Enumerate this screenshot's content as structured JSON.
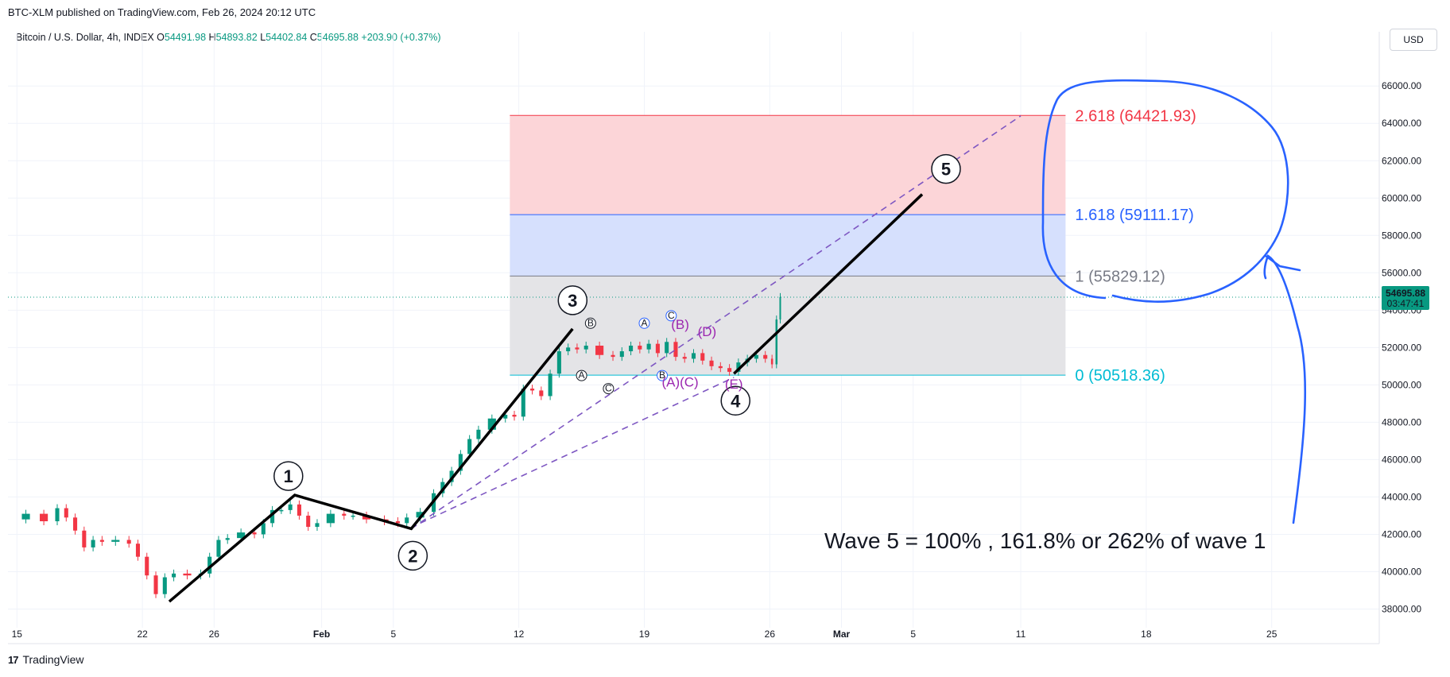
{
  "header": {
    "published": "BTC-XLM published on TradingView.com, Feb 26, 2024 20:12 UTC"
  },
  "symbol": {
    "name": "Bitcoin / U.S. Dollar, 4h, INDEX",
    "open_label": "O",
    "open": "54491.98",
    "high_label": "H",
    "high": "54893.82",
    "low_label": "L",
    "low": "54402.84",
    "close_label": "C",
    "close": "54695.88",
    "change": "+203.90 (+0.37%)"
  },
  "currency": "USD",
  "footer": {
    "brand": "TradingView"
  },
  "price_tag": {
    "price": "54695.88",
    "countdown": "03:47:41"
  },
  "chart_data": {
    "type": "line",
    "title": "",
    "xlabel": "",
    "ylabel": "",
    "ylim": [
      37000,
      67200
    ],
    "y_ticks": [
      38000,
      40000,
      42000,
      44000,
      46000,
      48000,
      50000,
      52000,
      54000,
      56000,
      58000,
      60000,
      62000,
      64000,
      66000
    ],
    "y_tick_labels": [
      "38000.00",
      "40000.00",
      "42000.00",
      "44000.00",
      "46000.00",
      "48000.00",
      "50000.00",
      "52000.00",
      "54000.00",
      "56000.00",
      "58000.00",
      "60000.00",
      "62000.00",
      "64000.00",
      "66000.00"
    ],
    "x_ticks": [
      {
        "date": "2024-01-15",
        "label": "15"
      },
      {
        "date": "2024-01-22",
        "label": "22"
      },
      {
        "date": "2024-01-26",
        "label": "26"
      },
      {
        "date": "2024-02-01",
        "label": "Feb"
      },
      {
        "date": "2024-02-05",
        "label": "5"
      },
      {
        "date": "2024-02-12",
        "label": "12"
      },
      {
        "date": "2024-02-19",
        "label": "19"
      },
      {
        "date": "2024-02-26",
        "label": "26"
      },
      {
        "date": "2024-03-01",
        "label": "Mar"
      },
      {
        "date": "2024-03-05",
        "label": "5"
      },
      {
        "date": "2024-03-11",
        "label": "11"
      },
      {
        "date": "2024-03-18",
        "label": "18"
      },
      {
        "date": "2024-03-25",
        "label": "25"
      }
    ],
    "price_series": [
      [
        "2024-01-15",
        42800
      ],
      [
        "2024-01-16",
        43100
      ],
      [
        "2024-01-17",
        42700
      ],
      [
        "2024-01-17T12",
        43400
      ],
      [
        "2024-01-18",
        42900
      ],
      [
        "2024-01-18T12",
        42200
      ],
      [
        "2024-01-19",
        41300
      ],
      [
        "2024-01-19T12",
        41700
      ],
      [
        "2024-01-20",
        41600
      ],
      [
        "2024-01-21",
        41700
      ],
      [
        "2024-01-21T12",
        41500
      ],
      [
        "2024-01-22",
        40800
      ],
      [
        "2024-01-22T12",
        39800
      ],
      [
        "2024-01-23",
        38800
      ],
      [
        "2024-01-23T12",
        39700
      ],
      [
        "2024-01-24",
        39900
      ],
      [
        "2024-01-25",
        39800
      ],
      [
        "2024-01-25T12",
        39900
      ],
      [
        "2024-01-26",
        40800
      ],
      [
        "2024-01-26T12",
        41700
      ],
      [
        "2024-01-27",
        41800
      ],
      [
        "2024-01-28",
        42100
      ],
      [
        "2024-01-28T12",
        42000
      ],
      [
        "2024-01-29",
        42600
      ],
      [
        "2024-01-29T12",
        43300
      ],
      [
        "2024-01-30",
        43300
      ],
      [
        "2024-01-30T12",
        43600
      ],
      [
        "2024-01-31",
        43000
      ],
      [
        "2024-01-31T12",
        42400
      ],
      [
        "2024-02-01",
        42600
      ],
      [
        "2024-02-02",
        43100
      ],
      [
        "2024-02-02T12",
        43000
      ],
      [
        "2024-02-03",
        43000
      ],
      [
        "2024-02-04",
        42800
      ],
      [
        "2024-02-05",
        42700
      ],
      [
        "2024-02-05T12",
        42600
      ],
      [
        "2024-02-06",
        42900
      ],
      [
        "2024-02-07",
        43200
      ],
      [
        "2024-02-07T12",
        44200
      ],
      [
        "2024-02-08",
        44800
      ],
      [
        "2024-02-08T12",
        45400
      ],
      [
        "2024-02-09",
        46300
      ],
      [
        "2024-02-09T12",
        47100
      ],
      [
        "2024-02-10",
        47600
      ],
      [
        "2024-02-11",
        48200
      ],
      [
        "2024-02-11T12",
        48400
      ],
      [
        "2024-02-12",
        48300
      ],
      [
        "2024-02-12T12",
        49800
      ],
      [
        "2024-02-13",
        49700
      ],
      [
        "2024-02-13T12",
        49400
      ],
      [
        "2024-02-14",
        50600
      ],
      [
        "2024-02-14T12",
        51800
      ],
      [
        "2024-02-15",
        52000
      ],
      [
        "2024-02-15T12",
        51900
      ],
      [
        "2024-02-16",
        52100
      ],
      [
        "2024-02-17",
        51600
      ],
      [
        "2024-02-17T12",
        51500
      ],
      [
        "2024-02-18",
        51800
      ],
      [
        "2024-02-18T12",
        52100
      ],
      [
        "2024-02-19",
        51900
      ],
      [
        "2024-02-19T12",
        52200
      ],
      [
        "2024-02-20",
        51700
      ],
      [
        "2024-02-20T12",
        52300
      ],
      [
        "2024-02-21",
        51500
      ],
      [
        "2024-02-21T12",
        51400
      ],
      [
        "2024-02-22",
        51700
      ],
      [
        "2024-02-22T12",
        51300
      ],
      [
        "2024-02-23",
        51000
      ],
      [
        "2024-02-23T12",
        50900
      ],
      [
        "2024-02-24",
        50700
      ],
      [
        "2024-02-24T12",
        51200
      ],
      [
        "2024-02-25",
        51400
      ],
      [
        "2024-02-25T12",
        51600
      ],
      [
        "2024-02-26",
        51400
      ],
      [
        "2024-02-26T06",
        51100
      ],
      [
        "2024-02-26T12",
        53500
      ],
      [
        "2024-02-26T16",
        54700
      ]
    ],
    "fib_zones": [
      {
        "level": "2.618",
        "price": 64421.93,
        "label": "2.618 (64421.93)",
        "color": "#f23645",
        "fill": "#fcd5d8"
      },
      {
        "level": "1.618",
        "price": 59111.17,
        "label": "1.618 (59111.17)",
        "color": "#2962ff",
        "fill": "#d6e0fd"
      },
      {
        "level": "1",
        "price": 55829.12,
        "label": "1 (55829.12)",
        "color": "#787b86",
        "fill": "#e4e4e7"
      },
      {
        "level": "0",
        "price": 50518.36,
        "label": "0 (50518.36)",
        "color": "#00bcd4",
        "fill": "#e4e4e7"
      }
    ],
    "fib_start": "2024-02-11T12",
    "fib_end": "2024-03-13T12",
    "waves": [
      {
        "label": "1",
        "date": "2024-01-30T12",
        "price": 44100,
        "label_pos": "above"
      },
      {
        "label": "2",
        "date": "2024-02-06",
        "price": 42300,
        "label_pos": "below"
      },
      {
        "label": "3",
        "date": "2024-02-15",
        "price": 53000,
        "label_pos": "above-left"
      },
      {
        "label": "4",
        "date": "2024-02-24",
        "price": 50600,
        "label_pos": "below"
      },
      {
        "label": "5",
        "date": "2024-03-05T12",
        "price": 60200,
        "label_pos": "above-right"
      }
    ],
    "wave_path": [
      [
        "2024-01-23T12",
        38400
      ],
      [
        "2024-01-30T12",
        44100
      ],
      [
        "2024-02-06",
        42300
      ],
      [
        "2024-02-15",
        53000
      ]
    ],
    "wave5_path": [
      [
        "2024-02-24",
        50600
      ],
      [
        "2024-03-05T12",
        60200
      ]
    ],
    "channel_lines": [
      {
        "from": [
          "2024-02-06",
          42300
        ],
        "to": [
          "2024-03-11",
          64400
        ],
        "color": "#7e57c2"
      },
      {
        "from": [
          "2024-02-06T12",
          42600
        ],
        "to": [
          "2024-02-24",
          50400
        ],
        "color": "#7e57c2"
      }
    ],
    "sub_labels": [
      {
        "text": "(A)(C)",
        "date": "2024-02-21",
        "price": 49900,
        "color": "#9c27b0"
      },
      {
        "text": "(B)",
        "date": "2024-02-21",
        "price": 53000,
        "color": "#9c27b0"
      },
      {
        "text": "(D)",
        "date": "2024-02-22T12",
        "price": 52600,
        "color": "#9c27b0"
      },
      {
        "text": "(E)",
        "date": "2024-02-24",
        "price": 49800,
        "color": "#9c27b0"
      }
    ],
    "small_circles": [
      {
        "text": "B",
        "date": "2024-02-16",
        "price": 53300,
        "color": "#131722"
      },
      {
        "text": "A",
        "date": "2024-02-15T12",
        "price": 50500,
        "color": "#131722"
      },
      {
        "text": "C",
        "date": "2024-02-17",
        "price": 49800,
        "color": "#131722"
      },
      {
        "text": "A",
        "date": "2024-02-19",
        "price": 53300,
        "color": "#2962ff"
      },
      {
        "text": "C",
        "date": "2024-02-20T12",
        "price": 53700,
        "color": "#2962ff"
      },
      {
        "text": "B",
        "date": "2024-02-20",
        "price": 50500,
        "color": "#2962ff"
      }
    ],
    "annotation_text": "Wave 5 = 100% , 161.8% or 262% of wave 1",
    "last_price": 54695.88,
    "colors": {
      "up": "#089981",
      "down": "#f23645",
      "wave_line": "#000000",
      "handdrawn": "#2962ff",
      "price_line": "#089981"
    }
  }
}
